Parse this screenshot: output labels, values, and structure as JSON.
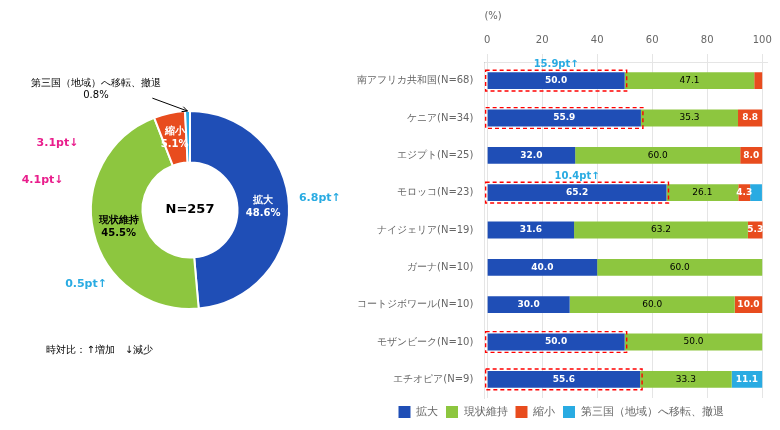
{
  "chart_data": [
    {
      "type": "doughnut",
      "categories": [
        "拡大",
        "現状維持",
        "縮小",
        "第三国（地域）へ移転、撤退"
      ],
      "values": [
        48.6,
        45.5,
        5.1,
        0.8
      ],
      "value_labels": [
        "48.6%",
        "45.5%",
        "5.1%",
        "0.8%"
      ],
      "colors": [
        "#1f4eb6",
        "#8dc63f",
        "#e84c1e",
        "#29abe2"
      ],
      "data_labels": true,
      "annotations": [
        {
          "text": "N=257"
        },
        {
          "text": "3.1pt↓",
          "color": "#e91e8c"
        },
        {
          "text": "4.1pt↓",
          "color": "#e91e8c"
        },
        {
          "text": "6.8pt↑",
          "color": "#29abe2"
        },
        {
          "text": "0.5pt↑",
          "color": "#29abe2"
        },
        {
          "text": "時対比：↑増加　↓減少"
        }
      ]
    },
    {
      "type": "bar",
      "orientation": "horizontal",
      "stacked": true,
      "categories": [
        "南アフリカ共和国(N=68)",
        "ケニア(N=34)",
        "エジプト(N=25)",
        "モロッコ(N=23)",
        "ナイジェリア(N=19)",
        "ガーナ(N=10)",
        "コートジボワール(N=10)",
        "モザンビーク(N=10)",
        "エチオピア(N=9)"
      ],
      "series": [
        {
          "name": "拡大",
          "color": "#1f4eb6",
          "values": [
            50.0,
            55.9,
            32.0,
            65.2,
            31.6,
            40.0,
            30.0,
            50.0,
            55.6
          ],
          "value_labels": [
            "50.0",
            "55.9",
            "32.0",
            "65.2",
            "31.6",
            "40.0",
            "30.0",
            "50.0",
            "55.6"
          ]
        },
        {
          "name": "現状維持",
          "color": "#8dc63f",
          "values": [
            47.1,
            35.3,
            60.0,
            26.1,
            63.2,
            60.0,
            60.0,
            50.0,
            33.3
          ],
          "value_labels": [
            "47.1",
            "35.3",
            "60.0",
            "26.1",
            "63.2",
            "60.0",
            "60.0",
            "50.0",
            "33.3"
          ]
        },
        {
          "name": "縮小",
          "color": "#e84c1e",
          "values": [
            2.9,
            8.8,
            8.0,
            4.3,
            5.3,
            0.0,
            10.0,
            0.0,
            0.0
          ],
          "value_labels": [
            null,
            "8.8",
            "8.0",
            "4.3",
            "5.3",
            null,
            "10.0",
            null,
            null
          ]
        },
        {
          "name": "第三国（地域）へ移転、撤退",
          "color": "#29abe2",
          "values": [
            0.0,
            0.0,
            0.0,
            4.3,
            0.0,
            0.0,
            0.0,
            0.0,
            11.1
          ],
          "value_labels": [
            null,
            null,
            null,
            null,
            null,
            null,
            null,
            null,
            "11.1"
          ]
        }
      ],
      "xlim": [
        -1,
        102
      ],
      "xticks": [
        0,
        20,
        40,
        60,
        80,
        100
      ],
      "xlabel": "(%)",
      "grid": true,
      "legend": "bottom",
      "data_labels": true,
      "annotations": [
        {
          "text": "15.9pt↑",
          "category": "南アフリカ共和国(N=68)",
          "series": "拡大",
          "color": "#29abe2"
        },
        {
          "text": "10.4pt↑",
          "category": "モロッコ(N=23)",
          "series": "拡大",
          "color": "#29abe2"
        },
        {
          "type": "box",
          "category": "南アフリカ共和国(N=68)",
          "series": "拡大",
          "color": "red",
          "line_style": "dashed"
        },
        {
          "type": "box",
          "category": "ケニア(N=34)",
          "series": "拡大",
          "color": "red",
          "line_style": "dashed"
        },
        {
          "type": "box",
          "category": "モロッコ(N=23)",
          "series": "拡大",
          "color": "red",
          "line_style": "dashed"
        },
        {
          "type": "box",
          "category": "モザンビーク(N=10)",
          "series": "拡大",
          "color": "red",
          "line_style": "dashed"
        },
        {
          "type": "box",
          "category": "エチオピア(N=9)",
          "series": "拡大",
          "color": "red",
          "line_style": "dashed"
        }
      ]
    }
  ]
}
